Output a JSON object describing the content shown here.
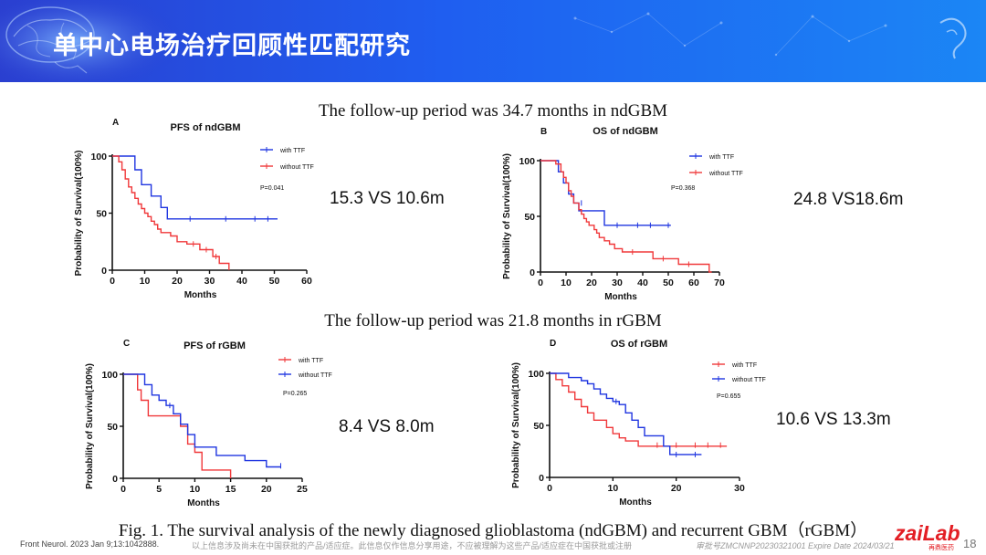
{
  "header": {
    "title": "单中心电场治疗回顾性匹配研究"
  },
  "headlines": {
    "ndgbm": "The follow-up period was 34.7 months in ndGBM",
    "rgbm": "The follow-up period was 21.8 months in rGBM"
  },
  "comparisons": {
    "a": "15.3 VS 10.6m",
    "b": "24.8 VS18.6m",
    "c": "8.4 VS 8.0m",
    "d": "10.6 VS 13.3m"
  },
  "caption": "Fig. 1. The survival analysis of the newly diagnosed glioblastoma (ndGBM) and recurrent GBM（rGBM）",
  "footer": {
    "reference": "Front Neurol. 2023 Jan 9;13:1042888.",
    "disclaimer": "以上信息涉及尚未在中国获批的产品/适应症。此信息仅作信息分享用途，不应被理解为这些产品/适应症在中国获批或注册",
    "approval": "审批号ZMCNNP20230321001 Expire Date 2024/03/21",
    "page": "18",
    "logo": "zaiLab",
    "logo_sub": "再鼎医药"
  },
  "colors": {
    "blue": "#1f35e0",
    "red": "#f0383a"
  },
  "chart_data": [
    {
      "panel": "A",
      "type": "line",
      "title": "PFS of ndGBM",
      "xlabel": "Months",
      "ylabel": "Probability of Survival(100%)",
      "xlim": [
        0,
        60
      ],
      "ylim": [
        0,
        100
      ],
      "xticks": [
        0,
        10,
        20,
        30,
        40,
        50,
        60
      ],
      "yticks": [
        0,
        50,
        100
      ],
      "pvalue": "P=0.041",
      "series": [
        {
          "name": "with TTF",
          "color": "#1f35e0",
          "points": [
            [
              0,
              100
            ],
            [
              7,
              100
            ],
            [
              7,
              88
            ],
            [
              9,
              88
            ],
            [
              9,
              75
            ],
            [
              12,
              75
            ],
            [
              12,
              65
            ],
            [
              15,
              65
            ],
            [
              15,
              55
            ],
            [
              17,
              55
            ],
            [
              17,
              45
            ],
            [
              51,
              45
            ]
          ],
          "censor": [
            [
              24,
              45
            ],
            [
              35,
              45
            ],
            [
              44,
              45
            ],
            [
              48,
              45
            ]
          ]
        },
        {
          "name": "without TTF",
          "color": "#f0383a",
          "points": [
            [
              0,
              100
            ],
            [
              2,
              100
            ],
            [
              2,
              95
            ],
            [
              3,
              95
            ],
            [
              3,
              88
            ],
            [
              4,
              88
            ],
            [
              4,
              80
            ],
            [
              5,
              80
            ],
            [
              5,
              73
            ],
            [
              6,
              73
            ],
            [
              6,
              68
            ],
            [
              7,
              68
            ],
            [
              7,
              63
            ],
            [
              8,
              63
            ],
            [
              8,
              58
            ],
            [
              9,
              58
            ],
            [
              9,
              54
            ],
            [
              10,
              54
            ],
            [
              10,
              50
            ],
            [
              11,
              50
            ],
            [
              11,
              47
            ],
            [
              12,
              47
            ],
            [
              12,
              43
            ],
            [
              13,
              43
            ],
            [
              13,
              40
            ],
            [
              14,
              40
            ],
            [
              14,
              36
            ],
            [
              15,
              36
            ],
            [
              15,
              33
            ],
            [
              18,
              33
            ],
            [
              18,
              30
            ],
            [
              20,
              30
            ],
            [
              20,
              25
            ],
            [
              23,
              25
            ],
            [
              23,
              23
            ],
            [
              27,
              23
            ],
            [
              27,
              18
            ],
            [
              31,
              18
            ],
            [
              31,
              12
            ],
            [
              33,
              12
            ],
            [
              33,
              6
            ],
            [
              36,
              6
            ],
            [
              36,
              0
            ]
          ],
          "censor": [
            [
              25,
              23
            ],
            [
              29,
              18
            ],
            [
              32,
              12
            ]
          ]
        }
      ]
    },
    {
      "panel": "B",
      "type": "line",
      "title": "OS of ndGBM",
      "xlabel": "Months",
      "ylabel": "Probability of Survival(100%)",
      "xlim": [
        0,
        70
      ],
      "ylim": [
        0,
        100
      ],
      "xticks": [
        0,
        10,
        20,
        30,
        40,
        50,
        60,
        70
      ],
      "yticks": [
        0,
        50,
        100
      ],
      "pvalue": "P=0.368",
      "series": [
        {
          "name": "with TTF",
          "color": "#1f35e0",
          "points": [
            [
              0,
              100
            ],
            [
              7,
              100
            ],
            [
              7,
              90
            ],
            [
              9,
              90
            ],
            [
              9,
              80
            ],
            [
              11,
              80
            ],
            [
              11,
              70
            ],
            [
              13,
              70
            ],
            [
              13,
              62
            ],
            [
              15,
              62
            ],
            [
              15,
              55
            ],
            [
              25,
              55
            ],
            [
              25,
              42
            ],
            [
              51,
              42
            ]
          ],
          "censor": [
            [
              16,
              62
            ],
            [
              30,
              42
            ],
            [
              38,
              42
            ],
            [
              43,
              42
            ],
            [
              50,
              42
            ]
          ]
        },
        {
          "name": "without TTF",
          "color": "#f0383a",
          "points": [
            [
              0,
              100
            ],
            [
              6,
              100
            ],
            [
              6,
              97
            ],
            [
              8,
              97
            ],
            [
              8,
              90
            ],
            [
              9,
              90
            ],
            [
              9,
              85
            ],
            [
              10,
              85
            ],
            [
              10,
              80
            ],
            [
              11,
              80
            ],
            [
              11,
              73
            ],
            [
              12,
              73
            ],
            [
              12,
              68
            ],
            [
              13,
              68
            ],
            [
              13,
              62
            ],
            [
              15,
              62
            ],
            [
              15,
              56
            ],
            [
              16,
              56
            ],
            [
              16,
              52
            ],
            [
              17,
              52
            ],
            [
              17,
              48
            ],
            [
              18,
              48
            ],
            [
              18,
              45
            ],
            [
              19,
              45
            ],
            [
              19,
              42
            ],
            [
              21,
              42
            ],
            [
              21,
              38
            ],
            [
              22,
              38
            ],
            [
              22,
              35
            ],
            [
              23,
              35
            ],
            [
              23,
              31
            ],
            [
              25,
              31
            ],
            [
              25,
              28
            ],
            [
              27,
              28
            ],
            [
              27,
              25
            ],
            [
              29,
              25
            ],
            [
              29,
              21
            ],
            [
              32,
              21
            ],
            [
              32,
              18
            ],
            [
              44,
              18
            ],
            [
              44,
              12
            ],
            [
              54,
              12
            ],
            [
              54,
              7
            ],
            [
              66,
              7
            ],
            [
              66,
              0
            ],
            [
              67,
              0
            ]
          ],
          "censor": [
            [
              36,
              18
            ],
            [
              48,
              12
            ],
            [
              58,
              7
            ]
          ]
        }
      ]
    },
    {
      "panel": "C",
      "type": "line",
      "title": "PFS of rGBM",
      "xlabel": "Months",
      "ylabel": "Probability of Survival(100%)",
      "xlim": [
        0,
        25
      ],
      "ylim": [
        0,
        100
      ],
      "xticks": [
        0,
        5,
        10,
        15,
        20,
        25
      ],
      "yticks": [
        0,
        50,
        100
      ],
      "pvalue": "P=0.265",
      "series": [
        {
          "name": "with TTF",
          "color": "#f0383a",
          "points": [
            [
              0,
              100
            ],
            [
              2,
              100
            ],
            [
              2,
              85
            ],
            [
              2.5,
              85
            ],
            [
              2.5,
              75
            ],
            [
              3.5,
              75
            ],
            [
              3.5,
              60
            ],
            [
              8,
              60
            ],
            [
              8,
              50
            ],
            [
              9,
              50
            ],
            [
              9,
              33
            ],
            [
              10,
              33
            ],
            [
              10,
              25
            ],
            [
              11,
              25
            ],
            [
              11,
              8
            ],
            [
              15,
              8
            ],
            [
              15,
              0
            ]
          ],
          "censor": []
        },
        {
          "name": "without TTF",
          "color": "#1f35e0",
          "points": [
            [
              0,
              100
            ],
            [
              3,
              100
            ],
            [
              3,
              90
            ],
            [
              4,
              90
            ],
            [
              4,
              80
            ],
            [
              5,
              80
            ],
            [
              5,
              75
            ],
            [
              6,
              75
            ],
            [
              6,
              70
            ],
            [
              7,
              70
            ],
            [
              7,
              62
            ],
            [
              8,
              62
            ],
            [
              8,
              52
            ],
            [
              9,
              52
            ],
            [
              9,
              42
            ],
            [
              10,
              42
            ],
            [
              10,
              30
            ],
            [
              13,
              30
            ],
            [
              13,
              22
            ],
            [
              17,
              22
            ],
            [
              17,
              17
            ],
            [
              20,
              17
            ],
            [
              20,
              11
            ],
            [
              22,
              11
            ]
          ],
          "censor": [
            [
              6.5,
              70
            ],
            [
              22,
              12
            ]
          ]
        }
      ]
    },
    {
      "panel": "D",
      "type": "line",
      "title": "OS of rGBM",
      "xlabel": "Months",
      "ylabel": "Probability of Survival(100%)",
      "xlim": [
        0,
        30
      ],
      "ylim": [
        0,
        100
      ],
      "xticks": [
        0,
        10,
        20,
        30
      ],
      "yticks": [
        0,
        50,
        100
      ],
      "pvalue": "P=0.655",
      "series": [
        {
          "name": "with TTF",
          "color": "#f0383a",
          "points": [
            [
              0,
              100
            ],
            [
              1,
              100
            ],
            [
              1,
              94
            ],
            [
              2,
              94
            ],
            [
              2,
              88
            ],
            [
              3,
              88
            ],
            [
              3,
              82
            ],
            [
              4,
              82
            ],
            [
              4,
              75
            ],
            [
              5,
              75
            ],
            [
              5,
              68
            ],
            [
              6,
              68
            ],
            [
              6,
              62
            ],
            [
              7,
              62
            ],
            [
              7,
              55
            ],
            [
              9,
              55
            ],
            [
              9,
              48
            ],
            [
              10,
              48
            ],
            [
              10,
              42
            ],
            [
              11,
              42
            ],
            [
              11,
              38
            ],
            [
              12,
              38
            ],
            [
              12,
              35
            ],
            [
              14,
              35
            ],
            [
              14,
              30
            ],
            [
              28,
              30
            ]
          ],
          "censor": [
            [
              17,
              31
            ],
            [
              20,
              31
            ],
            [
              23,
              31
            ],
            [
              25,
              31
            ],
            [
              27,
              31
            ]
          ]
        },
        {
          "name": "without TTF",
          "color": "#1f35e0",
          "points": [
            [
              0,
              100
            ],
            [
              3,
              100
            ],
            [
              3,
              96
            ],
            [
              5,
              96
            ],
            [
              5,
              93
            ],
            [
              6,
              93
            ],
            [
              6,
              90
            ],
            [
              7,
              90
            ],
            [
              7,
              85
            ],
            [
              8,
              85
            ],
            [
              8,
              80
            ],
            [
              9,
              80
            ],
            [
              9,
              76
            ],
            [
              10,
              76
            ],
            [
              10,
              73
            ],
            [
              11,
              73
            ],
            [
              11,
              70
            ],
            [
              12,
              70
            ],
            [
              12,
              62
            ],
            [
              13,
              62
            ],
            [
              13,
              55
            ],
            [
              14,
              55
            ],
            [
              14,
              48
            ],
            [
              15,
              48
            ],
            [
              15,
              40
            ],
            [
              18,
              40
            ],
            [
              18,
              30
            ],
            [
              19,
              30
            ],
            [
              19,
              22
            ],
            [
              24,
              22
            ]
          ],
          "censor": [
            [
              10.5,
              73
            ],
            [
              20,
              22
            ],
            [
              23,
              22
            ]
          ]
        }
      ]
    }
  ]
}
